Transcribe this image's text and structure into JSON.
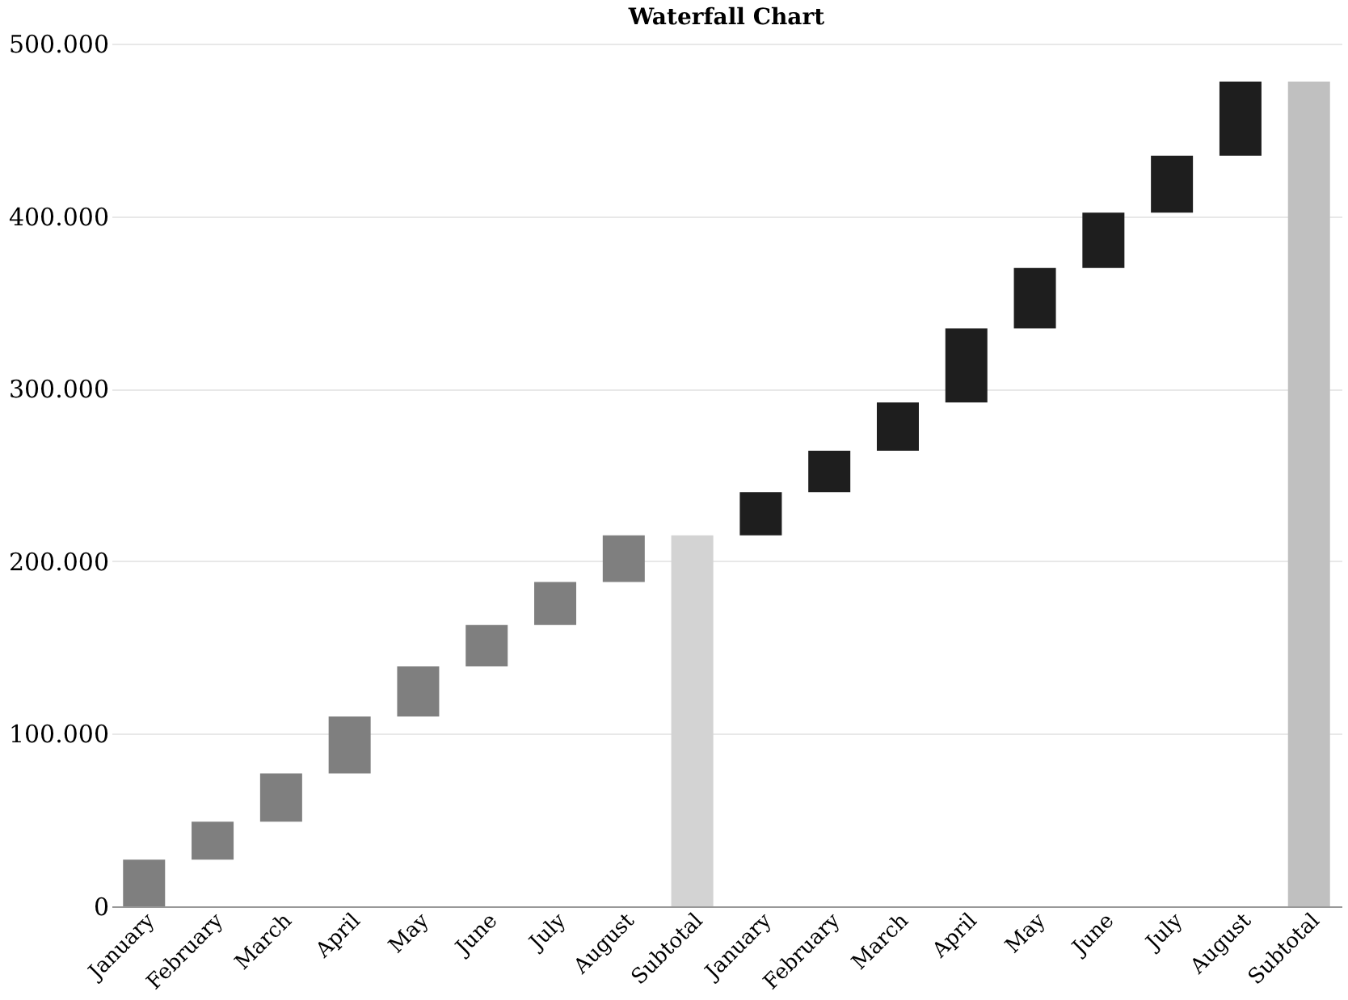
{
  "chart_data": {
    "type": "bar",
    "title": "Waterfall Chart",
    "categories": [
      "January",
      "February",
      "March",
      "April",
      "May",
      "June",
      "July",
      "August",
      "Subtotal",
      "January",
      "February",
      "March",
      "April",
      "May",
      "June",
      "July",
      "August",
      "Subtotal"
    ],
    "values": [
      27000,
      22000,
      28000,
      33000,
      29000,
      24000,
      25000,
      27000,
      215000,
      25000,
      24000,
      28000,
      43000,
      35000,
      32000,
      33000,
      43000,
      478000
    ],
    "base": [
      0,
      27000,
      49000,
      77000,
      110000,
      139000,
      163000,
      188000,
      0,
      215000,
      240000,
      264000,
      292000,
      335000,
      370000,
      402000,
      435000,
      0
    ],
    "colors": [
      "#7f7f7f",
      "#7f7f7f",
      "#7f7f7f",
      "#7f7f7f",
      "#7f7f7f",
      "#7f7f7f",
      "#7f7f7f",
      "#7f7f7f",
      "#d3d3d3",
      "#1e1e1e",
      "#1e1e1e",
      "#1e1e1e",
      "#1e1e1e",
      "#1e1e1e",
      "#1e1e1e",
      "#1e1e1e",
      "#1e1e1e",
      "#c0c0c0"
    ],
    "ylim": [
      0,
      500000
    ],
    "yticks": [
      0,
      {
        "value": 100000,
        "label": "100.000"
      },
      {
        "value": 200000,
        "label": "200.000"
      },
      {
        "value": 300000,
        "label": "300.000"
      },
      {
        "value": 400000,
        "label": "400.000"
      },
      {
        "value": 500000,
        "label": "500.000"
      }
    ],
    "grid": "y"
  }
}
